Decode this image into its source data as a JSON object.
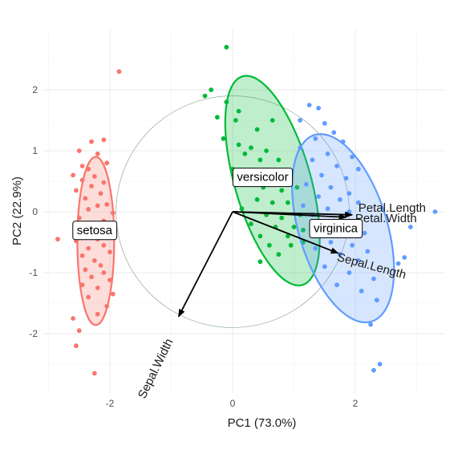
{
  "chart_data": {
    "type": "scatter",
    "xlabel": "PC1 (73.0%)",
    "ylabel": "PC2 (22.9%)",
    "xlim": [
      -3.0,
      3.35
    ],
    "ylim": [
      -2.92,
      2.9
    ],
    "x_ticks": [
      -2,
      0,
      2
    ],
    "y_ticks": [
      -2,
      -1,
      0,
      1,
      2
    ],
    "grid": true,
    "colors": {
      "setosa": "#F8766D",
      "versicolor": "#00BA38",
      "virginica": "#619CFF",
      "arrow": "#000000",
      "circle": "#7f9f85"
    },
    "series": [
      {
        "name": "setosa",
        "ellipse": {
          "cx": -2.23,
          "cy": -0.48,
          "rx": 0.3,
          "ry": 1.38,
          "angle": 0
        },
        "label": {
          "text": "setosa",
          "x": -2.25,
          "y": -0.3
        },
        "points": [
          [
            -1.85,
            2.3
          ],
          [
            -2.5,
            1.0
          ],
          [
            -2.3,
            1.15
          ],
          [
            -2.1,
            1.18
          ],
          [
            -2.45,
            0.75
          ],
          [
            -2.2,
            0.95
          ],
          [
            -2.35,
            0.7
          ],
          [
            -2.6,
            0.6
          ],
          [
            -2.05,
            0.8
          ],
          [
            -2.25,
            0.58
          ],
          [
            -2.45,
            0.52
          ],
          [
            -2.1,
            0.48
          ],
          [
            -2.3,
            0.42
          ],
          [
            -2.55,
            0.35
          ],
          [
            -2.15,
            0.3
          ],
          [
            -2.4,
            0.22
          ],
          [
            -2.05,
            0.12
          ],
          [
            -2.2,
            0.1
          ],
          [
            -2.35,
            0.04
          ],
          [
            -1.95,
            -0.02
          ],
          [
            -2.5,
            -0.1
          ],
          [
            -2.1,
            -0.15
          ],
          [
            -2.3,
            -0.2
          ],
          [
            -2.0,
            -0.28
          ],
          [
            -2.4,
            -0.32
          ],
          [
            -2.85,
            -0.45
          ],
          [
            -2.2,
            -0.45
          ],
          [
            -2.55,
            -0.48
          ],
          [
            -2.1,
            -0.55
          ],
          [
            -2.35,
            -0.6
          ],
          [
            -2.0,
            -0.66
          ],
          [
            -2.45,
            -0.72
          ],
          [
            -2.25,
            -0.8
          ],
          [
            -2.15,
            -0.88
          ],
          [
            -2.4,
            -0.95
          ],
          [
            -2.1,
            -1.0
          ],
          [
            -2.3,
            -1.07
          ],
          [
            -2.0,
            -1.12
          ],
          [
            -2.45,
            -1.2
          ],
          [
            -2.2,
            -1.25
          ],
          [
            -1.95,
            -1.35
          ],
          [
            -2.35,
            -1.4
          ],
          [
            -2.05,
            -1.55
          ],
          [
            -2.2,
            -1.68
          ],
          [
            -2.6,
            -1.75
          ],
          [
            -2.5,
            -1.95
          ],
          [
            -2.55,
            -2.2
          ],
          [
            -2.25,
            -2.65
          ]
        ]
      },
      {
        "name": "versicolor",
        "ellipse": {
          "cx": 0.65,
          "cy": 0.51,
          "rx": 0.62,
          "ry": 1.78,
          "angle": -16
        },
        "label": {
          "text": "versicolor",
          "x": 0.49,
          "y": 0.57
        },
        "points": [
          [
            -0.1,
            2.7
          ],
          [
            -0.35,
            2.0
          ],
          [
            -0.45,
            1.9
          ],
          [
            -0.1,
            1.8
          ],
          [
            0.1,
            1.65
          ],
          [
            -0.25,
            1.55
          ],
          [
            0.05,
            1.5
          ],
          [
            0.4,
            1.35
          ],
          [
            0.65,
            1.5
          ],
          [
            -0.15,
            1.2
          ],
          [
            0.1,
            1.1
          ],
          [
            0.3,
            1.05
          ],
          [
            0.55,
            1.0
          ],
          [
            0.2,
            0.95
          ],
          [
            0.45,
            0.85
          ],
          [
            0.75,
            0.85
          ],
          [
            0.0,
            0.7
          ],
          [
            0.35,
            0.65
          ],
          [
            0.6,
            0.6
          ],
          [
            0.95,
            0.65
          ],
          [
            0.25,
            0.45
          ],
          [
            0.5,
            0.4
          ],
          [
            0.8,
            0.35
          ],
          [
            1.05,
            0.4
          ],
          [
            0.4,
            0.2
          ],
          [
            0.65,
            0.15
          ],
          [
            0.9,
            0.15
          ],
          [
            0.15,
            0.05
          ],
          [
            0.55,
            -0.05
          ],
          [
            0.8,
            -0.1
          ],
          [
            1.1,
            -0.05
          ],
          [
            0.3,
            -0.2
          ],
          [
            0.7,
            -0.25
          ],
          [
            1.0,
            -0.25
          ],
          [
            0.45,
            -0.4
          ],
          [
            0.9,
            -0.4
          ],
          [
            1.15,
            -0.3
          ],
          [
            0.6,
            -0.55
          ],
          [
            0.95,
            -0.55
          ],
          [
            0.75,
            -0.7
          ],
          [
            0.45,
            -0.82
          ],
          [
            1.15,
            -0.5
          ]
        ]
      },
      {
        "name": "virginica",
        "ellipse": {
          "cx": 1.8,
          "cy": -0.27,
          "rx": 0.72,
          "ry": 1.6,
          "angle": -17
        },
        "label": {
          "text": "virginica",
          "x": 1.68,
          "y": -0.27
        },
        "points": [
          [
            1.25,
            1.75
          ],
          [
            1.4,
            1.7
          ],
          [
            1.1,
            1.5
          ],
          [
            1.5,
            1.45
          ],
          [
            1.65,
            1.3
          ],
          [
            1.35,
            1.2
          ],
          [
            1.8,
            1.15
          ],
          [
            1.1,
            1.05
          ],
          [
            1.55,
            0.95
          ],
          [
            1.95,
            0.9
          ],
          [
            1.3,
            0.85
          ],
          [
            1.7,
            0.75
          ],
          [
            2.05,
            0.7
          ],
          [
            1.45,
            0.6
          ],
          [
            1.85,
            0.55
          ],
          [
            1.2,
            0.45
          ],
          [
            1.6,
            0.4
          ],
          [
            1.9,
            0.3
          ],
          [
            1.4,
            0.25
          ],
          [
            1.75,
            0.2
          ],
          [
            2.05,
            0.15
          ],
          [
            1.15,
            0.1
          ],
          [
            1.55,
            0.05
          ],
          [
            1.9,
            0.0
          ],
          [
            1.3,
            -0.05
          ],
          [
            1.65,
            -0.15
          ],
          [
            2.0,
            -0.2
          ],
          [
            1.45,
            -0.3
          ],
          [
            1.8,
            -0.35
          ],
          [
            2.15,
            -0.35
          ],
          [
            1.6,
            -0.5
          ],
          [
            1.95,
            -0.55
          ],
          [
            1.35,
            -0.6
          ],
          [
            2.2,
            -0.65
          ],
          [
            1.75,
            -0.7
          ],
          [
            2.05,
            -0.8
          ],
          [
            1.5,
            -0.9
          ],
          [
            1.9,
            -1.0
          ],
          [
            2.3,
            -1.1
          ],
          [
            1.7,
            -1.2
          ],
          [
            2.1,
            -1.3
          ],
          [
            2.35,
            -1.45
          ],
          [
            2.25,
            -1.85
          ],
          [
            2.4,
            -2.5
          ],
          [
            2.3,
            -2.6
          ],
          [
            2.9,
            -0.25
          ],
          [
            3.3,
            0.0
          ],
          [
            2.7,
            -0.85
          ],
          [
            2.8,
            -0.75
          ]
        ]
      }
    ],
    "variables": [
      {
        "name": "Petal.Length",
        "x": 1.95,
        "y": -0.05,
        "label_x": 2.6,
        "label_y": 0.0,
        "angle": 0
      },
      {
        "name": "Petal.Width",
        "x": 1.85,
        "y": -0.09,
        "label_x": 2.5,
        "label_y": -0.17,
        "angle": 0
      },
      {
        "name": "Sepal.Length",
        "x": 1.72,
        "y": -0.68,
        "label_x": 2.25,
        "label_y": -0.95,
        "angle": 15
      },
      {
        "name": "Sepal.Width",
        "x": -0.88,
        "y": -1.72,
        "label_x": -1.2,
        "label_y": -2.6,
        "angle": -64
      }
    ],
    "correlation_circle": {
      "cx": 0.0,
      "cy": 0.0,
      "r": 1.9
    }
  }
}
